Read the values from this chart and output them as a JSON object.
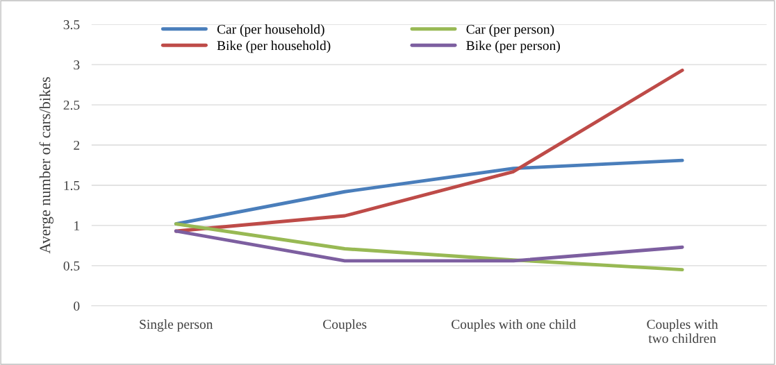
{
  "chart_data": {
    "type": "line",
    "ylabel": "Averge number of cars/bikes",
    "categories": [
      "Single person",
      "Couples",
      "Couples with one child",
      "Couples with two children"
    ],
    "series": [
      {
        "name": "Car (per household)",
        "color": "#4a7ebb",
        "values": [
          1.02,
          1.42,
          1.71,
          1.81
        ]
      },
      {
        "name": "Bike (per household)",
        "color": "#be4b48",
        "values": [
          0.93,
          1.12,
          1.67,
          2.93
        ]
      },
      {
        "name": "Car (per person)",
        "color": "#98b954",
        "values": [
          1.02,
          0.71,
          0.57,
          0.45
        ]
      },
      {
        "name": "Bike (per person)",
        "color": "#7d5fa0",
        "values": [
          0.93,
          0.56,
          0.56,
          0.73
        ]
      }
    ],
    "ylim": [
      0,
      3.5
    ],
    "yticks": [
      0,
      0.5,
      1,
      1.5,
      2,
      2.5,
      3,
      3.5
    ],
    "grid": "y",
    "legend": "top",
    "marker": "none",
    "line_style": "solid"
  }
}
